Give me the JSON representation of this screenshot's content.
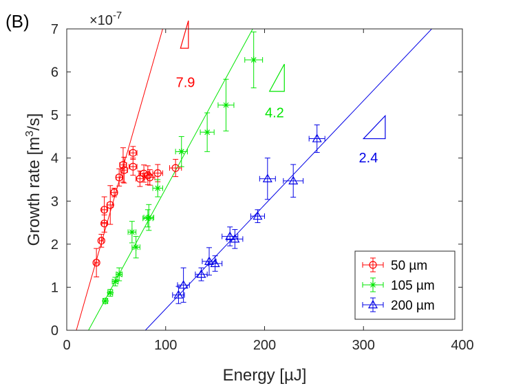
{
  "chart_data": {
    "type": "scatter",
    "panel_label": "(B)",
    "title": "",
    "xlabel": "Energy [µJ]",
    "ylabel_main": "Growth rate [m",
    "ylabel_sup": "3",
    "ylabel_tail": "/s]",
    "y_multiplier_base": "×10",
    "y_multiplier_exp": "-7",
    "xlim": [
      0,
      400
    ],
    "ylim": [
      0,
      7
    ],
    "xticks": [
      0,
      100,
      200,
      300,
      400
    ],
    "yticks": [
      0,
      1,
      2,
      3,
      4,
      5,
      6,
      7
    ],
    "grid": false,
    "legend_position": "bottom-right",
    "series": [
      {
        "name": "50 µm",
        "color": "#ff0000",
        "marker": "circle",
        "fit_line": [
          [
            9.7,
            0
          ],
          [
            97,
            7
          ]
        ],
        "slope_label": "7.9",
        "points": [
          {
            "x": 30,
            "y": 1.57,
            "xerr": 2,
            "yerr": 0.33
          },
          {
            "x": 35,
            "y": 2.08,
            "xerr": 2,
            "yerr": 0.15
          },
          {
            "x": 38,
            "y": 2.8,
            "xerr": 2.5,
            "yerr": 0.3
          },
          {
            "x": 38,
            "y": 2.48,
            "xerr": 2.5,
            "yerr": 0.2
          },
          {
            "x": 44,
            "y": 2.91,
            "xerr": 3,
            "yerr": 0.45
          },
          {
            "x": 48,
            "y": 3.2,
            "xerr": 3,
            "yerr": 0.1
          },
          {
            "x": 53,
            "y": 3.55,
            "xerr": 3,
            "yerr": 0.2
          },
          {
            "x": 57,
            "y": 3.84,
            "xerr": 3.5,
            "yerr": 0.4
          },
          {
            "x": 58,
            "y": 3.72,
            "xerr": 3.5,
            "yerr": 0.3
          },
          {
            "x": 67,
            "y": 3.8,
            "xerr": 4,
            "yerr": 0.2
          },
          {
            "x": 67,
            "y": 4.12,
            "xerr": 4,
            "yerr": 0.15
          },
          {
            "x": 74,
            "y": 3.52,
            "xerr": 4,
            "yerr": 0.18
          },
          {
            "x": 78,
            "y": 3.64,
            "xerr": 5,
            "yerr": 0.2
          },
          {
            "x": 82,
            "y": 3.6,
            "xerr": 5,
            "yerr": 0.22
          },
          {
            "x": 84,
            "y": 3.55,
            "xerr": 5,
            "yerr": 0.18
          },
          {
            "x": 92,
            "y": 3.65,
            "xerr": 5,
            "yerr": 0.2
          },
          {
            "x": 110,
            "y": 3.77,
            "xerr": 6,
            "yerr": 0.2
          }
        ]
      },
      {
        "name": "105 µm",
        "color": "#00e600",
        "marker": "asterisk",
        "fit_line": [
          [
            22,
            0
          ],
          [
            188,
            7
          ]
        ],
        "slope_label": "4.2",
        "points": [
          {
            "x": 39,
            "y": 0.68,
            "xerr": 2.5,
            "yerr": 0.06
          },
          {
            "x": 44,
            "y": 0.87,
            "xerr": 2.5,
            "yerr": 0.08
          },
          {
            "x": 49,
            "y": 1.13,
            "xerr": 3,
            "yerr": 0.1
          },
          {
            "x": 53,
            "y": 1.3,
            "xerr": 3,
            "yerr": 0.15
          },
          {
            "x": 66,
            "y": 2.28,
            "xerr": 4,
            "yerr": 0.25
          },
          {
            "x": 70,
            "y": 1.93,
            "xerr": 4,
            "yerr": 0.25
          },
          {
            "x": 82,
            "y": 2.6,
            "xerr": 5,
            "yerr": 0.2
          },
          {
            "x": 83,
            "y": 2.62,
            "xerr": 5,
            "yerr": 0.3
          },
          {
            "x": 92,
            "y": 3.3,
            "xerr": 5,
            "yerr": 0.2
          },
          {
            "x": 116,
            "y": 4.15,
            "xerr": 6,
            "yerr": 0.35
          },
          {
            "x": 142,
            "y": 4.6,
            "xerr": 7,
            "yerr": 0.45
          },
          {
            "x": 161,
            "y": 5.23,
            "xerr": 8,
            "yerr": 0.6
          },
          {
            "x": 189,
            "y": 6.28,
            "xerr": 9,
            "yerr": 0.65
          }
        ]
      },
      {
        "name": "200 µm",
        "color": "#0000e6",
        "marker": "triangle",
        "fit_line": [
          [
            79.5,
            0
          ],
          [
            369,
            7
          ]
        ],
        "slope_label": "2.4",
        "points": [
          {
            "x": 113,
            "y": 0.82,
            "xerr": 6,
            "yerr": 0.2
          },
          {
            "x": 118,
            "y": 1.05,
            "xerr": 6,
            "yerr": 0.4
          },
          {
            "x": 136,
            "y": 1.3,
            "xerr": 6,
            "yerr": 0.15
          },
          {
            "x": 144,
            "y": 1.6,
            "xerr": 7,
            "yerr": 0.32
          },
          {
            "x": 150,
            "y": 1.55,
            "xerr": 7,
            "yerr": 0.18
          },
          {
            "x": 165,
            "y": 2.18,
            "xerr": 8,
            "yerr": 0.22
          },
          {
            "x": 170,
            "y": 2.12,
            "xerr": 8,
            "yerr": 0.22
          },
          {
            "x": 193,
            "y": 2.65,
            "xerr": 7,
            "yerr": 0.15
          },
          {
            "x": 203,
            "y": 3.52,
            "xerr": 8,
            "yerr": 0.48
          },
          {
            "x": 229,
            "y": 3.47,
            "xerr": 10,
            "yerr": 0.38
          },
          {
            "x": 253,
            "y": 4.45,
            "xerr": 8,
            "yerr": 0.32
          }
        ]
      }
    ]
  }
}
